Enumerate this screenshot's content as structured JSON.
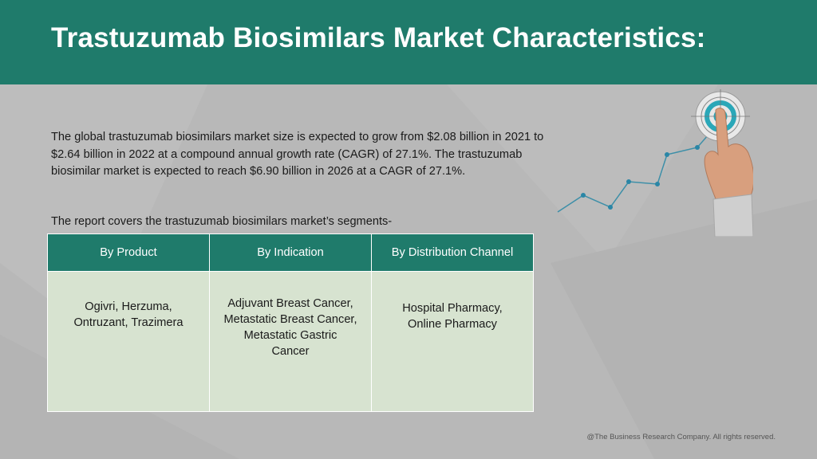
{
  "header": {
    "title": "Trastuzumab Biosimilars Market Characteristics:",
    "background_color": "#1f7b6b"
  },
  "intro": {
    "paragraph_1": "The global trastuzumab biosimilars market size is expected to grow from $2.08 billion in 2021 to $2.64 billion in 2022 at a compound annual growth rate (CAGR) of 27.1%. The trastuzumab biosimilar market is expected to reach $6.90 billion in 2026 at a CAGR of 27.1%.",
    "paragraph_2": "The report covers the trastuzumab biosimilars market’s segments-"
  },
  "segments_table": {
    "headers": [
      "By Product",
      "By Indication",
      "By Distribution Channel"
    ],
    "cells": [
      [
        "Ogivri, Herzuma,",
        "Ontruzant, Trazimera"
      ],
      [
        "Adjuvant Breast Cancer,",
        "Metastatic Breast Cancer,",
        "Metastatic Gastric",
        "Cancer"
      ],
      [
        "Hospital Pharmacy,",
        "Online Pharmacy"
      ]
    ],
    "header_color": "#1f7b6b",
    "cell_color": "#d7e3d0"
  },
  "graphic": {
    "icon": "growth-chart-target-hand-icon",
    "accent_color": "#2aa7b8"
  },
  "footer": {
    "copyright": "@The Business Research Company. All rights reserved."
  }
}
